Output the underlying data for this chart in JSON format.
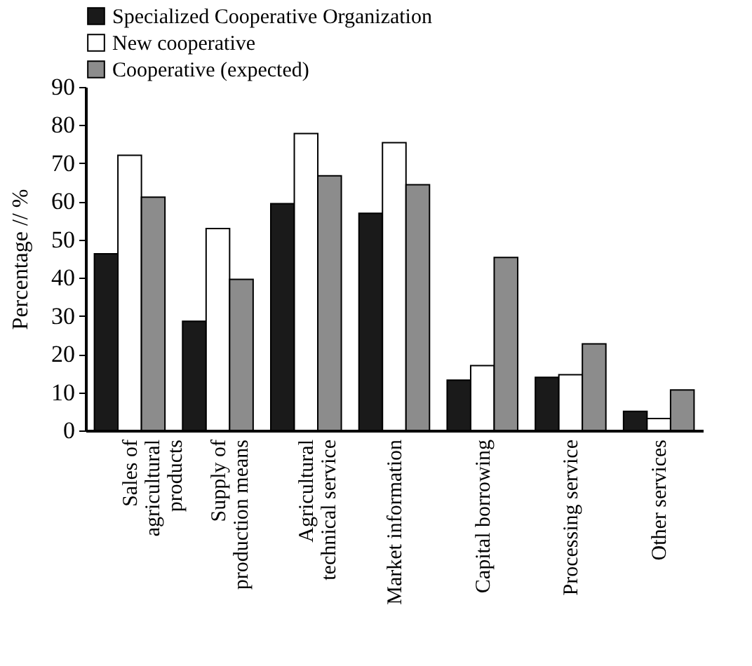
{
  "chart_data": {
    "type": "bar",
    "ylabel": "Percentage // %",
    "categories": [
      "Sales of agricultural products",
      "Supply of production means",
      "Agricultural technical service",
      "Market information",
      "Capital borrowing",
      "Processing service",
      "Other services"
    ],
    "series": [
      {
        "name": "Specialized Cooperative Organization",
        "color": "#1a1a1a",
        "values": [
          46.3,
          28.6,
          59.4,
          56.9,
          13.2,
          13.9,
          5.0
        ]
      },
      {
        "name": "New cooperative",
        "color": "#ffffff",
        "values": [
          72.1,
          52.9,
          77.8,
          75.4,
          17.0,
          14.6,
          3.1
        ]
      },
      {
        "name": "Cooperative (expected)",
        "color": "#8c8c8c",
        "values": [
          61.1,
          39.6,
          66.7,
          64.4,
          45.3,
          22.7,
          10.6
        ]
      }
    ],
    "ylim": [
      0,
      90
    ],
    "yticks": [
      0,
      10,
      20,
      30,
      40,
      50,
      60,
      70,
      80,
      90
    ],
    "grid": false,
    "legend": "top"
  }
}
